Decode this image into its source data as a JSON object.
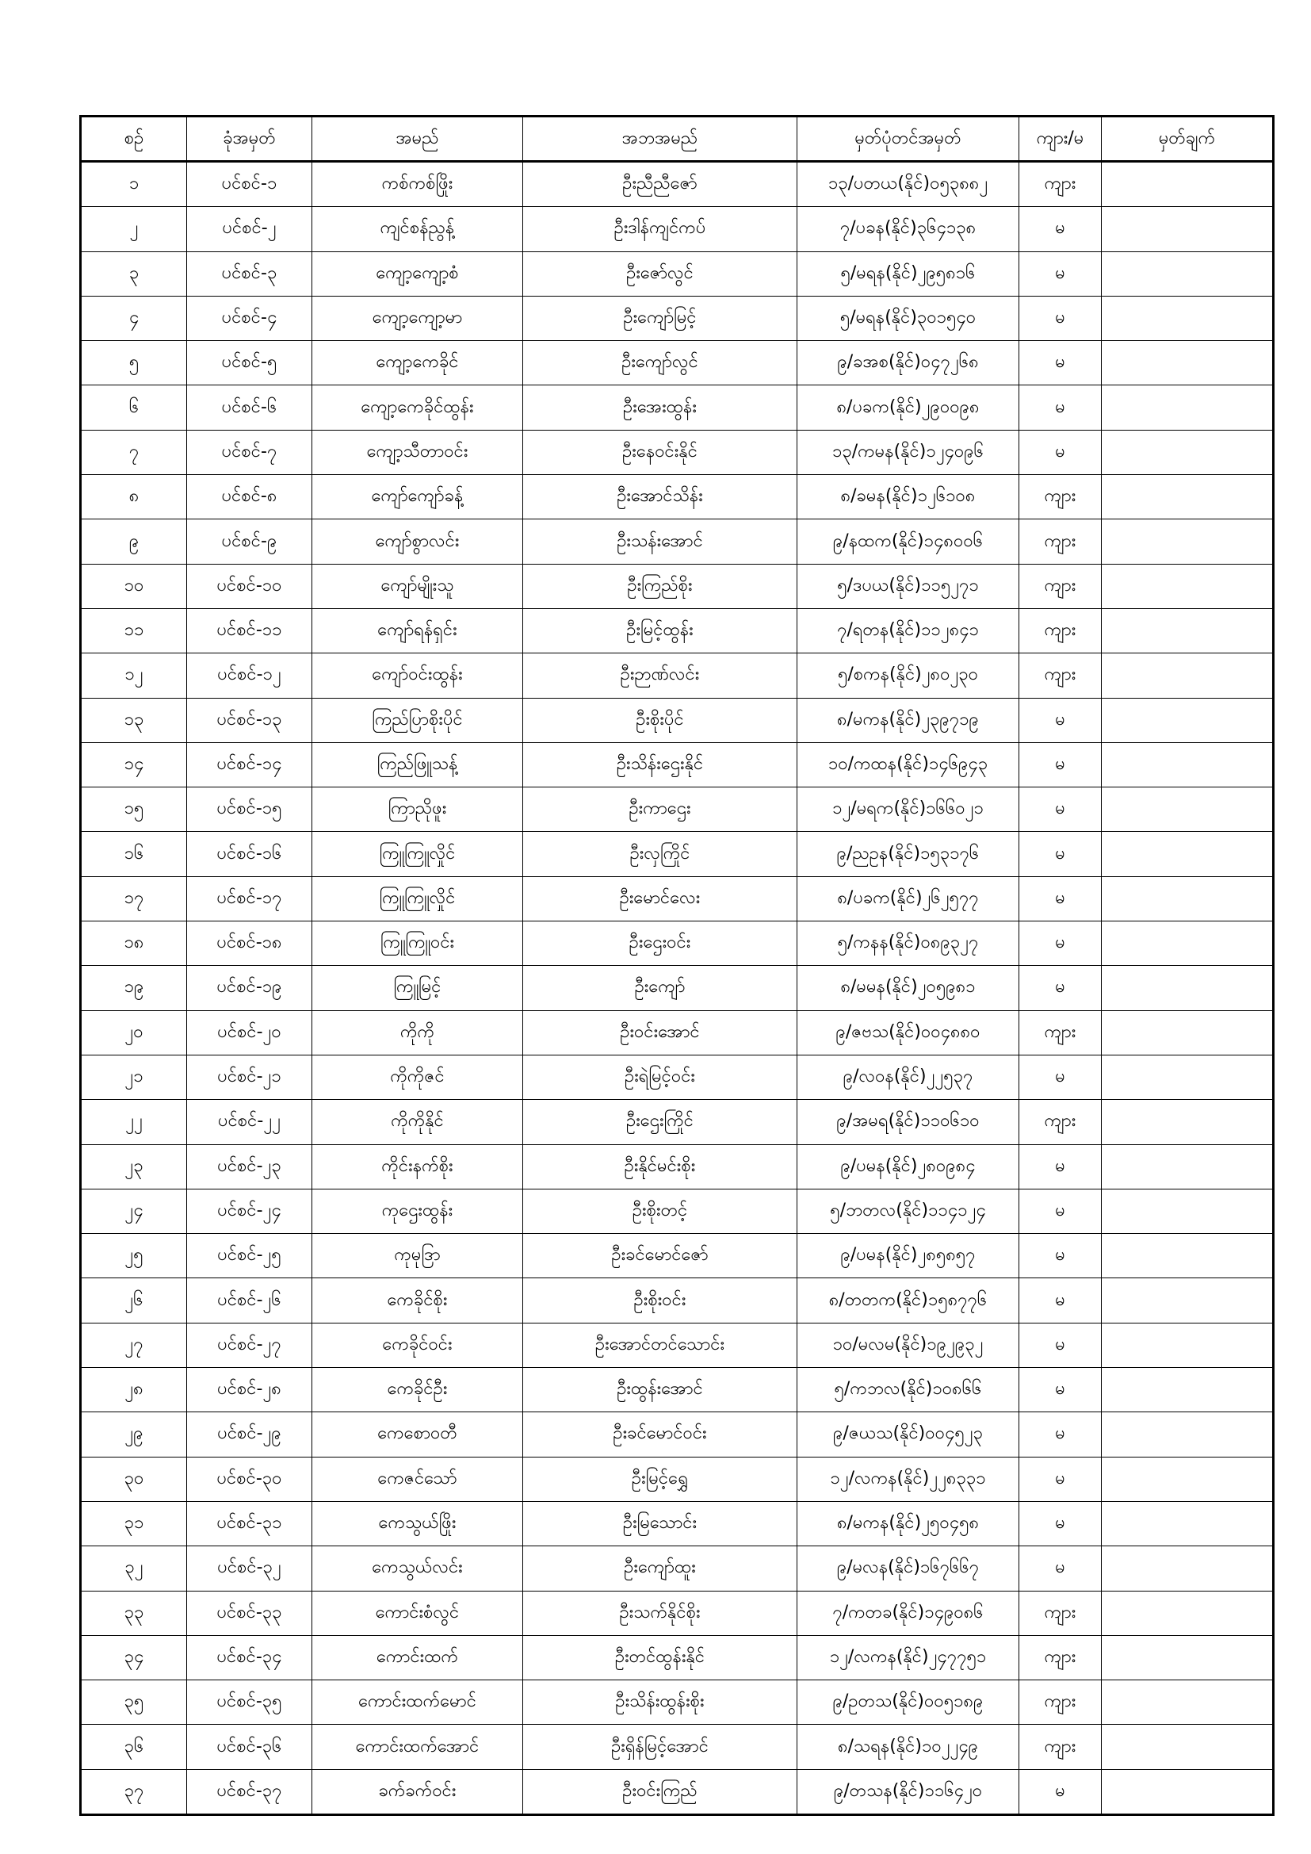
{
  "table": {
    "headers": [
      "စဉ်",
      "ခုံအမှတ်",
      "အမည်",
      "အဘအမည်",
      "မှတ်ပုံတင်အမှတ်",
      "ကျား/မ",
      "မှတ်ချက်"
    ],
    "rows": [
      [
        "၁",
        "ပင်စင်-၁",
        "ကစ်ကစ်ဖြိုး",
        "ဦးညီညီဇော်",
        "၁၃/ပတယ(နိုင်)၀၅၃၈၈၂",
        "ကျား",
        ""
      ],
      [
        "၂",
        "ပင်စင်-၂",
        "ကျင်စန်ညွန့်",
        "ဦးဒါန်ကျင်ကပ်",
        "၇/ပခန(နိုင်)၃၆၄၁၃၈",
        "မ",
        ""
      ],
      [
        "၃",
        "ပင်စင်-၃",
        "ကျော့ကျော့စံ",
        "ဦးဇော်လွင်",
        "၅/မရန(နိုင်)၂၉၅၈၁၆",
        "မ",
        ""
      ],
      [
        "၄",
        "ပင်စင်-၄",
        "ကျော့ကျော့မာ",
        "ဦးကျော်မြင့်",
        "၅/မရန(နိုင်)၃၀၁၅၄၀",
        "မ",
        ""
      ],
      [
        "၅",
        "ပင်စင်-၅",
        "ကျော့ကေခိုင်",
        "ဦးကျော်လွင်",
        "၉/ခအစ(နိုင်)၀၄၇၂၆၈",
        "မ",
        ""
      ],
      [
        "၆",
        "ပင်စင်-၆",
        "ကျော့ကေခိုင်ထွန်း",
        "ဦးအေးထွန်း",
        "၈/ပခက(နိုင်)၂၉၀၀၉၈",
        "မ",
        ""
      ],
      [
        "၇",
        "ပင်စင်-၇",
        "ကျော့သီတာဝင်း",
        "ဦးနေဝင်းနိုင်",
        "၁၃/ကမန(နိုင်)၁၂၄၀၉၆",
        "မ",
        ""
      ],
      [
        "၈",
        "ပင်စင်-၈",
        "ကျော်ကျော်ခန့်",
        "ဦးအောင်သိန်း",
        "၈/ခမန(နိုင်)၁၂၆၁၀၈",
        "ကျား",
        ""
      ],
      [
        "၉",
        "ပင်စင်-၉",
        "ကျော်စွာလင်း",
        "ဦးသန်းအောင်",
        "၉/နထက(နိုင်)၁၄၈၀၀၆",
        "ကျား",
        ""
      ],
      [
        "၁၀",
        "ပင်စင်-၁၀",
        "ကျော်မျိုးသူ",
        "ဦးကြည်စိုး",
        "၅/ဒပယ(နိုင်)၁၁၅၂၇၁",
        "ကျား",
        ""
      ],
      [
        "၁၁",
        "ပင်စင်-၁၁",
        "ကျော်ရန်ရှင်း",
        "ဦးမြင့်ထွန်း",
        "၇/ရတန(နိုင်)၁၁၂၈၄၁",
        "ကျား",
        ""
      ],
      [
        "၁၂",
        "ပင်စင်-၁၂",
        "ကျော်ဝင်းထွန်း",
        "ဦးဉာဏ်လင်း",
        "၅/စကန(နိုင်)၂၈၀၂၃၀",
        "ကျား",
        ""
      ],
      [
        "၁၃",
        "ပင်စင်-၁၃",
        "ကြည်ပြာစိုးပိုင်",
        "ဦးစိုးပိုင်",
        "၈/မကန(နိုင်)၂၃၉၇၁၉",
        "မ",
        ""
      ],
      [
        "၁၄",
        "ပင်စင်-၁၄",
        "ကြည်ဖြူသန့်",
        "ဦးသိန်းဌေးနိုင်",
        "၁၀/ကထန(နိုင်)၁၄၆၉၄၃",
        "မ",
        ""
      ],
      [
        "၁၅",
        "ပင်စင်-၁၅",
        "ကြာညိုဖူး",
        "ဦးကာဌေး",
        "၁၂/မရက(နိုင်)၁၆၆၀၂၁",
        "မ",
        ""
      ],
      [
        "၁၆",
        "ပင်စင်-၁၆",
        "ကြူကြူလှိုင်",
        "ဦးလှကြိုင်",
        "၉/ညဥန(နိုင်)၁၅၃၁၇၆",
        "မ",
        ""
      ],
      [
        "၁၇",
        "ပင်စင်-၁၇",
        "ကြူကြူလှိုင်",
        "ဦးမောင်လေး",
        "၈/ပခက(နိုင်)၂၆၂၅၇၇",
        "မ",
        ""
      ],
      [
        "၁၈",
        "ပင်စင်-၁၈",
        "ကြူကြူဝင်း",
        "ဦးဌေးဝင်း",
        "၅/ကနန(နိုင်)၀၈၉၃၂၇",
        "မ",
        ""
      ],
      [
        "၁၉",
        "ပင်စင်-၁၉",
        "ကြူမြင့်",
        "ဦးကျော်",
        "၈/မမန(နိုင်)၂၀၅၉၈၁",
        "မ",
        ""
      ],
      [
        "၂၀",
        "ပင်စင်-၂၀",
        "ကိုကို",
        "ဦးဝင်းအောင်",
        "၉/ဇဗသ(နိုင်)၀၀၄၈၈၀",
        "ကျား",
        ""
      ],
      [
        "၂၁",
        "ပင်စင်-၂၁",
        "ကိုကိုဇင်",
        "ဦးရဲမြင့်ဝင်း",
        "၉/လဝန(နိုင်)၂၂၅၃၇",
        "မ",
        ""
      ],
      [
        "၂၂",
        "ပင်စင်-၂၂",
        "ကိုကိုနိုင်",
        "ဦးဌေးကြိုင်",
        "၉/အမရ(နိုင်)၁၁၀၆၁၀",
        "ကျား",
        ""
      ],
      [
        "၂၃",
        "ပင်စင်-၂၃",
        "ကိုင်းနက်စိုး",
        "ဦးနိုင်မင်းစိုး",
        "၉/ပမန(နိုင်)၂၈၀၉၈၄",
        "မ",
        ""
      ],
      [
        "၂၄",
        "ပင်စင်-၂၄",
        "ကုဌေးထွန်း",
        "ဦးစိုးတင့်",
        "၅/ဘတလ(နိုင်)၁၁၄၁၂၄",
        "မ",
        ""
      ],
      [
        "၂၅",
        "ပင်စင်-၂၅",
        "ကုမုဒြာ",
        "ဦးခင်မောင်ဇော်",
        "၉/ပမန(နိုင်)၂၈၅၈၅၇",
        "မ",
        ""
      ],
      [
        "၂၆",
        "ပင်စင်-၂၆",
        "ကေခိုင်စိုး",
        "ဦးစိုးဝင်း",
        "၈/တတက(နိုင်)၁၅၈၇၇၆",
        "မ",
        ""
      ],
      [
        "၂၇",
        "ပင်စင်-၂၇",
        "ကေခိုင်ဝင်း",
        "ဦးအောင်တင်သောင်း",
        "၁၀/မလမ(နိုင်)၁၉၂၉၃၂",
        "မ",
        ""
      ],
      [
        "၂၈",
        "ပင်စင်-၂၈",
        "ကေခိုင်ဦး",
        "ဦးထွန်းအောင်",
        "၅/ကဘလ(နိုင်)၁၀၈၆၆",
        "မ",
        ""
      ],
      [
        "၂၉",
        "ပင်စင်-၂၉",
        "ကေစောဝတီ",
        "ဦးခင်မောင်ဝင်း",
        "၉/ဇယသ(နိုင်)၀၀၄၅၂၃",
        "မ",
        ""
      ],
      [
        "၃၀",
        "ပင်စင်-၃၀",
        "ကေဇင်သော်",
        "ဦးမြင့်ရွှေ",
        "၁၂/လကန(နိုင်)၂၂၈၃၃၁",
        "မ",
        ""
      ],
      [
        "၃၁",
        "ပင်စင်-၃၁",
        "ကေသွယ်ဖြိုး",
        "ဦးမြသောင်း",
        "၈/မကန(နိုင်)၂၅၀၄၅၈",
        "မ",
        ""
      ],
      [
        "၃၂",
        "ပင်စင်-၃၂",
        "ကေသွယ်လင်း",
        "ဦးကျော်ထူး",
        "၉/မလန(နိုင်)၁၆၇၆၆၇",
        "မ",
        ""
      ],
      [
        "၃၃",
        "ပင်စင်-၃၃",
        "ကောင်းစံလွင်",
        "ဦးသက်နိုင်စိုး",
        "၇/ကတခ(နိုင်)၁၄၉၀၈၆",
        "ကျား",
        ""
      ],
      [
        "၃၄",
        "ပင်စင်-၃၄",
        "ကောင်းထက်",
        "ဦးတင်ထွန်းနိုင်",
        "၁၂/လကန(နိုင်)၂၄၇၇၅၁",
        "ကျား",
        ""
      ],
      [
        "၃၅",
        "ပင်စင်-၃၅",
        "ကောင်းထက်မောင်",
        "ဦးသိန်းထွန်းစိုး",
        "၉/ဥတသ(နိုင်)၀၀၅၁၈၉",
        "ကျား",
        ""
      ],
      [
        "၃၆",
        "ပင်စင်-၃၆",
        "ကောင်းထက်အောင်",
        "ဦးရှိန်မြင့်အောင်",
        "၈/သရန(နိုင်)၁၀၂၂၄၉",
        "ကျား",
        ""
      ],
      [
        "၃၇",
        "ပင်စင်-၃၇",
        "ခက်ခက်ဝင်း",
        "ဦးဝင်းကြည်",
        "၉/တသန(နိုင်)၁၁၆၄၂၀",
        "မ",
        ""
      ]
    ]
  }
}
